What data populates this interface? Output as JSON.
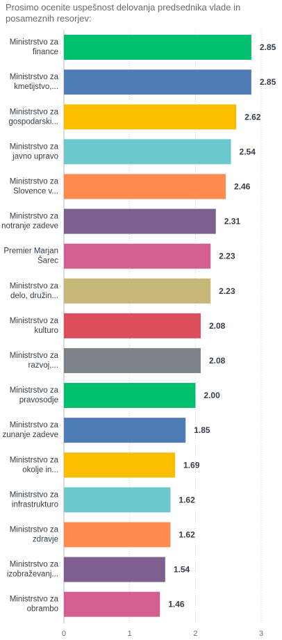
{
  "chart_data": {
    "type": "bar",
    "orientation": "horizontal",
    "title": "Prosimo ocenite uspešnost delovanja predsednika vlade in posameznih resorjev:",
    "categories": [
      [
        "Ministrstvo za",
        "finance"
      ],
      [
        "Ministrstvo za",
        "kmetijstvo,..."
      ],
      [
        "Ministrstvo za",
        "gospodarski..."
      ],
      [
        "Ministrstvo za",
        "javno upravo"
      ],
      [
        "Ministrstvo za",
        "Slovence v..."
      ],
      [
        "Ministrstvo za",
        "notranje zadeve"
      ],
      [
        "Premier Marjan",
        "Šarec"
      ],
      [
        "Ministrstvo za",
        "delo, družin..."
      ],
      [
        "Ministrstvo za",
        "kulturo"
      ],
      [
        "Ministrstvo za",
        "razvoj,..."
      ],
      [
        "Ministrstvo za",
        "pravosodje"
      ],
      [
        "Ministrstvo za",
        "zunanje zadeve"
      ],
      [
        "Ministrstvo za",
        "okolje in..."
      ],
      [
        "Ministrstvo za",
        "infrastrukturo"
      ],
      [
        "Ministrstvo za",
        "zdravje"
      ],
      [
        "Ministrstvo za",
        "izobraževanj..."
      ],
      [
        "Ministrstvo za",
        "obrambo"
      ]
    ],
    "values": [
      2.85,
      2.85,
      2.62,
      2.54,
      2.46,
      2.31,
      2.23,
      2.23,
      2.08,
      2.08,
      2.0,
      1.85,
      1.69,
      1.62,
      1.62,
      1.54,
      1.46
    ],
    "value_labels": [
      "2.85",
      "2.85",
      "2.62",
      "2.54",
      "2.46",
      "2.31",
      "2.23",
      "2.23",
      "2.08",
      "2.08",
      "2.00",
      "1.85",
      "1.69",
      "1.62",
      "1.62",
      "1.54",
      "1.46"
    ],
    "colors": [
      "#00bf6f",
      "#507cb6",
      "#f9be00",
      "#6bc8cd",
      "#ff8b4f",
      "#7f5f90",
      "#d25f90",
      "#c7b879",
      "#dd4e5b",
      "#7d848b"
    ],
    "xlim": [
      0,
      3
    ],
    "xticks": [
      "0",
      "1",
      "2",
      "3"
    ],
    "grid": true,
    "xlabel": "",
    "ylabel": ""
  }
}
